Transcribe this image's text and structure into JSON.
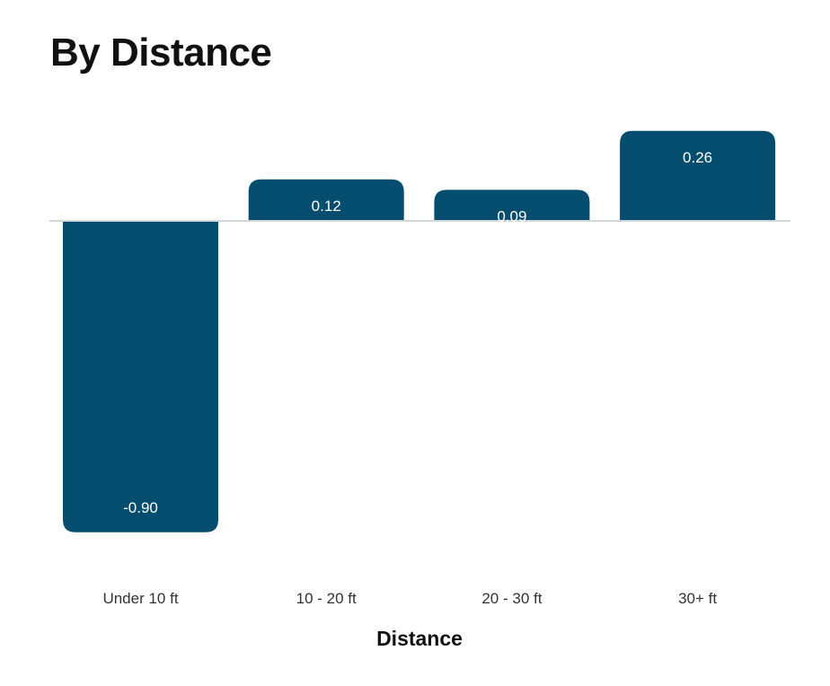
{
  "chart_data": {
    "type": "bar",
    "title": "By Distance",
    "xlabel": "Distance",
    "ylabel": "",
    "categories": [
      "Under 10 ft",
      "10 - 20 ft",
      "20 - 30 ft",
      "30+ ft"
    ],
    "values": [
      -0.9,
      0.12,
      0.09,
      0.26
    ],
    "data_labels": [
      "-0.90",
      "0.12",
      "0.09",
      "0.26"
    ],
    "ylim": [
      -0.9,
      0.26
    ],
    "grid": false,
    "legend": "none",
    "colors": {
      "bar": "#044d6e",
      "baseline": "#d3d6d9"
    }
  }
}
